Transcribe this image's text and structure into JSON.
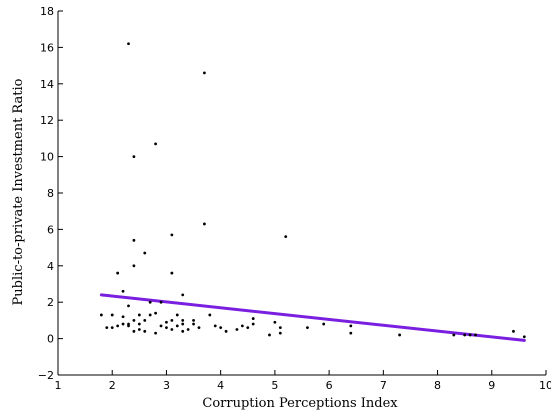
{
  "chart_data": {
    "type": "scatter",
    "title": "",
    "xlabel": "Corruption Perceptions Index",
    "ylabel": "Public-to-private Investment Ratio",
    "xlim": [
      1,
      10
    ],
    "ylim": [
      -2,
      18
    ],
    "x_ticks": [
      "1",
      "2",
      "3",
      "4",
      "5",
      "6",
      "7",
      "8",
      "9",
      "10"
    ],
    "y_ticks": [
      "−2",
      "0",
      "2",
      "4",
      "6",
      "8",
      "10",
      "12",
      "14",
      "16",
      "18"
    ],
    "grid": false,
    "point_color": "#000000",
    "trend_line": {
      "color": "#7a1fe0",
      "points": [
        [
          1.8,
          2.4
        ],
        [
          9.6,
          -0.1
        ]
      ]
    },
    "points": [
      [
        1.8,
        1.3
      ],
      [
        1.9,
        0.6
      ],
      [
        2.0,
        0.6
      ],
      [
        2.0,
        1.3
      ],
      [
        2.1,
        0.7
      ],
      [
        2.1,
        3.6
      ],
      [
        2.2,
        0.8
      ],
      [
        2.2,
        1.2
      ],
      [
        2.2,
        2.6
      ],
      [
        2.3,
        0.7
      ],
      [
        2.3,
        0.8
      ],
      [
        2.3,
        1.8
      ],
      [
        2.3,
        16.2
      ],
      [
        2.4,
        0.4
      ],
      [
        2.4,
        1.0
      ],
      [
        2.4,
        4.0
      ],
      [
        2.4,
        5.4
      ],
      [
        2.4,
        10.0
      ],
      [
        2.5,
        0.5
      ],
      [
        2.5,
        0.8
      ],
      [
        2.5,
        1.3
      ],
      [
        2.6,
        0.4
      ],
      [
        2.6,
        1.0
      ],
      [
        2.6,
        4.7
      ],
      [
        2.7,
        1.3
      ],
      [
        2.7,
        2.0
      ],
      [
        2.8,
        0.3
      ],
      [
        2.8,
        1.4
      ],
      [
        2.8,
        10.7
      ],
      [
        2.9,
        0.7
      ],
      [
        2.9,
        2.0
      ],
      [
        3.0,
        0.6
      ],
      [
        3.0,
        0.9
      ],
      [
        3.1,
        0.5
      ],
      [
        3.1,
        1.0
      ],
      [
        3.1,
        3.6
      ],
      [
        3.1,
        5.7
      ],
      [
        3.2,
        0.7
      ],
      [
        3.2,
        1.3
      ],
      [
        3.3,
        0.4
      ],
      [
        3.3,
        0.8
      ],
      [
        3.3,
        1.0
      ],
      [
        3.3,
        2.4
      ],
      [
        3.4,
        0.5
      ],
      [
        3.5,
        0.8
      ],
      [
        3.5,
        1.0
      ],
      [
        3.6,
        0.6
      ],
      [
        3.7,
        6.3
      ],
      [
        3.7,
        14.6
      ],
      [
        3.8,
        1.3
      ],
      [
        3.9,
        0.7
      ],
      [
        4.0,
        0.6
      ],
      [
        4.1,
        0.4
      ],
      [
        4.3,
        0.5
      ],
      [
        4.4,
        0.7
      ],
      [
        4.5,
        0.6
      ],
      [
        4.6,
        0.8
      ],
      [
        4.6,
        1.1
      ],
      [
        4.9,
        0.2
      ],
      [
        5.0,
        0.9
      ],
      [
        5.1,
        0.3
      ],
      [
        5.1,
        0.6
      ],
      [
        5.2,
        5.6
      ],
      [
        5.6,
        0.6
      ],
      [
        5.9,
        0.8
      ],
      [
        6.4,
        0.3
      ],
      [
        6.4,
        0.7
      ],
      [
        7.3,
        0.2
      ],
      [
        8.3,
        0.2
      ],
      [
        8.5,
        0.2
      ],
      [
        8.6,
        0.2
      ],
      [
        8.7,
        0.2
      ],
      [
        9.4,
        0.4
      ],
      [
        9.6,
        0.1
      ]
    ]
  }
}
